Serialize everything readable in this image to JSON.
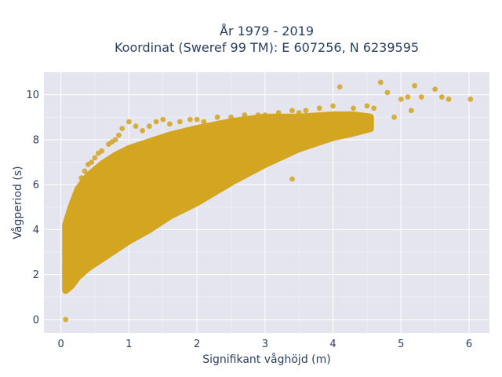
{
  "chart_data": {
    "type": "scatter",
    "title_line1": "År 1979 - 2019",
    "title_line2": "Koordinat (Sweref 99 TM): E 607256, N 6239595",
    "xlabel": "Signifikant våghöjd (m)",
    "ylabel": "Vågperiod (s)",
    "xlim": [
      -0.25,
      6.3
    ],
    "ylim": [
      -0.6,
      11.0
    ],
    "x_ticks": [
      0,
      1,
      2,
      3,
      4,
      5,
      6
    ],
    "y_ticks": [
      0,
      2,
      4,
      6,
      8,
      10
    ],
    "grid": true,
    "legend": "none",
    "marker_color": "#d4a520",
    "background": "#e5e5f0",
    "points": {
      "x": [
        0.07,
        0.1,
        0.12,
        0.15,
        0.18,
        0.2,
        0.25,
        0.3,
        0.3,
        0.35,
        0.4,
        0.45,
        0.5,
        0.55,
        0.6,
        0.6,
        0.7,
        0.75,
        0.8,
        0.85,
        0.9,
        1.0,
        1.0,
        1.1,
        1.2,
        1.3,
        1.4,
        1.5,
        1.6,
        1.75,
        1.9,
        2.0,
        2.1,
        2.3,
        2.5,
        2.7,
        2.9,
        3.0,
        3.2,
        3.4,
        3.5,
        3.6,
        3.8,
        4.0,
        4.1,
        4.3,
        4.5,
        4.6,
        4.7,
        4.8,
        4.9,
        5.0,
        5.1,
        5.2,
        5.3,
        5.5,
        5.6,
        5.7,
        6.02,
        0.15,
        0.2,
        0.3,
        0.4,
        0.5,
        0.6,
        0.8,
        1.0,
        1.3,
        1.6,
        2.0,
        2.4,
        2.8,
        3.2,
        3.5,
        1.2,
        1.5,
        1.9,
        2.1,
        3.4,
        4.2,
        4.45,
        5.15
      ],
      "y": [
        0.0,
        1.6,
        2.5,
        3.2,
        4.5,
        5.0,
        5.5,
        6.3,
        3.0,
        6.6,
        6.9,
        7.0,
        7.2,
        7.4,
        7.5,
        3.6,
        7.8,
        7.9,
        8.0,
        8.2,
        8.5,
        8.8,
        4.3,
        8.6,
        8.4,
        8.6,
        8.8,
        8.9,
        8.7,
        8.8,
        8.9,
        8.9,
        8.8,
        9.0,
        9.0,
        9.1,
        9.1,
        9.1,
        9.2,
        9.3,
        9.2,
        9.3,
        9.4,
        9.5,
        10.35,
        9.4,
        9.5,
        9.4,
        10.55,
        10.1,
        9.0,
        9.8,
        9.9,
        10.4,
        9.9,
        10.25,
        9.9,
        9.8,
        9.8,
        2.1,
        2.4,
        2.8,
        3.2,
        3.5,
        3.9,
        4.3,
        4.6,
        5.2,
        5.7,
        6.3,
        6.8,
        7.3,
        7.7,
        7.9,
        5.0,
        5.5,
        6.0,
        6.3,
        6.25,
        8.2,
        8.4,
        9.3
      ]
    }
  }
}
